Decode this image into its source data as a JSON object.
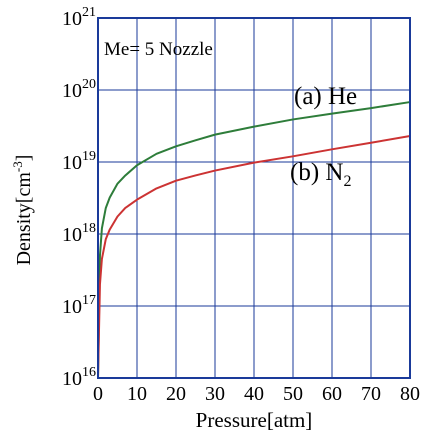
{
  "chart_data": {
    "type": "line",
    "title": "",
    "annotation": "Me= 5 Nozzle",
    "xlabel": "Pressure[atm]",
    "ylabel": "Density[cm⁻³]",
    "ylabel_base": "Density[cm",
    "ylabel_exp": "-3",
    "ylabel_close": "]",
    "xlim": [
      0,
      80
    ],
    "ylim": [
      1e+16,
      1e+21
    ],
    "yscale": "log",
    "grid": true,
    "x_ticks": [
      "0",
      "10",
      "20",
      "30",
      "40",
      "50",
      "60",
      "70",
      "80"
    ],
    "y_ticks": [
      {
        "base": "10",
        "exp": "16"
      },
      {
        "base": "10",
        "exp": "17"
      },
      {
        "base": "10",
        "exp": "18"
      },
      {
        "base": "10",
        "exp": "19"
      },
      {
        "base": "10",
        "exp": "20"
      },
      {
        "base": "10",
        "exp": "21"
      }
    ],
    "series": [
      {
        "name": "(a) He",
        "label_text": "(a) He",
        "color": "#2e7d3a",
        "x": [
          0,
          0.5,
          1,
          2,
          3,
          5,
          7,
          10,
          15,
          20,
          25,
          30,
          40,
          50,
          60,
          70,
          80
        ],
        "y": [
          1e+16,
          5e+17,
          1.2e+18,
          2.3e+18,
          3.2e+18,
          5e+18,
          6.5e+18,
          9e+18,
          1.3e+19,
          1.65e+19,
          2e+19,
          2.4e+19,
          3.1e+19,
          3.9e+19,
          4.7e+19,
          5.6e+19,
          6.8e+19
        ]
      },
      {
        "name": "(b) N2",
        "label_text": "(b) N",
        "label_sub": "2",
        "color": "#cc3333",
        "x": [
          0,
          0.5,
          1,
          2,
          3,
          5,
          7,
          10,
          15,
          20,
          25,
          30,
          40,
          50,
          60,
          70,
          80
        ],
        "y": [
          1e+16,
          2e+17,
          4.5e+17,
          8.5e+17,
          1.15e+18,
          1.75e+18,
          2.3e+18,
          3e+18,
          4.3e+18,
          5.5e+18,
          6.5e+18,
          7.6e+18,
          9.8e+18,
          1.2e+19,
          1.5e+19,
          1.85e+19,
          2.3e+19
        ]
      }
    ],
    "axis_color": "#1a3a9a",
    "grid_color": "#1a3a9a"
  }
}
